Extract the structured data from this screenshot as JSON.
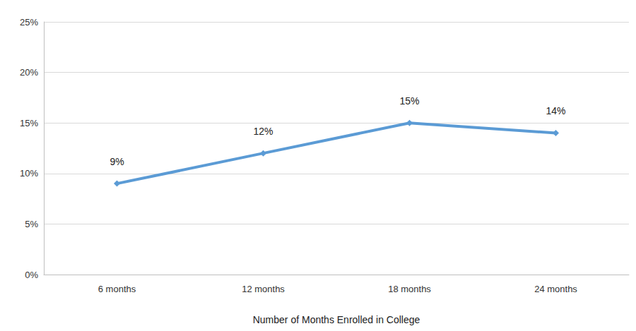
{
  "chart_data": {
    "type": "line",
    "x_label": "Number of Months Enrolled in College",
    "categories": [
      "6 months",
      "12 months",
      "18 months",
      "24 months"
    ],
    "values": [
      9,
      12,
      15,
      14
    ],
    "value_labels": [
      "9%",
      "12%",
      "15%",
      "14%"
    ],
    "data_labels": true,
    "color": "#5b9bd5",
    "marker": "diamond",
    "ylim": [
      0,
      25
    ],
    "yticks": [
      {
        "value": 0,
        "label": "0%"
      },
      {
        "value": 5,
        "label": "5%"
      },
      {
        "value": 10,
        "label": "10%"
      },
      {
        "value": 15,
        "label": "15%"
      },
      {
        "value": 20,
        "label": "20%"
      },
      {
        "value": 25,
        "label": "25%"
      }
    ],
    "grid": true
  }
}
